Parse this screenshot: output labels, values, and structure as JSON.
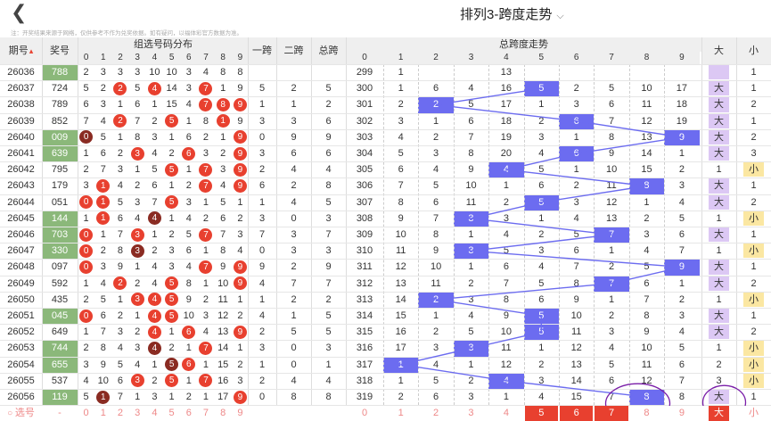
{
  "header": {
    "back_icon": "chevron-left-icon",
    "title": "排列3-跨度走势",
    "title_dropdown_icon": "chevron-down-icon",
    "note": "注：开奖结果来源于网络，仅供参考不作为兑奖依据。如有疑问，以福体彩官方数据为准。"
  },
  "columns": {
    "issue": "期号",
    "sort_icon": "sort-icon",
    "win": "奖号",
    "dist": "组选号码分布",
    "span1": "一跨",
    "span2": "二跨",
    "total_span": "总跨",
    "trend": "总跨度走势",
    "big": "大",
    "small": "小"
  },
  "digits": [
    "0",
    "1",
    "2",
    "3",
    "4",
    "5",
    "6",
    "7",
    "8",
    "9"
  ],
  "rows": [
    {
      "issue": "26036",
      "win": "788",
      "dist": [
        "2",
        "3",
        "3",
        "3",
        "10",
        "10",
        "3",
        "4",
        "8",
        "8"
      ],
      "span1": "",
      "span2": "",
      "total": "",
      "t": [
        "299",
        "1",
        "",
        "",
        "13",
        "",
        "",
        "",
        "",
        "",
        ""
      ],
      "sel": "big",
      "bv": "",
      "sv": "1"
    },
    {
      "issue": "26037",
      "win": "724",
      "dist": [
        "5",
        "2",
        "2",
        "5",
        "4",
        "14",
        "3",
        "7",
        "1",
        "9"
      ],
      "span1": "5",
      "span2": "2",
      "total": "5",
      "t": [
        "300",
        "1",
        "6",
        "4",
        "16",
        "5",
        "2",
        "5",
        "10",
        "17"
      ],
      "sel": "big",
      "bv": "大",
      "sv": "1"
    },
    {
      "issue": "26038",
      "win": "789",
      "dist": [
        "6",
        "3",
        "1",
        "6",
        "1",
        "15",
        "4",
        "7",
        "8",
        "9"
      ],
      "span1": "1",
      "span2": "1",
      "total": "2",
      "t": [
        "301",
        "2",
        "2",
        "5",
        "17",
        "1",
        "3",
        "6",
        "11",
        "18"
      ],
      "sel": "big",
      "bv": "大",
      "sv": "2"
    },
    {
      "issue": "26039",
      "win": "852",
      "dist": [
        "7",
        "4",
        "2",
        "7",
        "2",
        "5",
        "1",
        "8",
        "1",
        "9"
      ],
      "span1": "3",
      "span2": "3",
      "total": "6",
      "t": [
        "302",
        "3",
        "1",
        "6",
        "18",
        "2",
        "6",
        "7",
        "12",
        "19"
      ],
      "sel": "big",
      "bv": "大",
      "sv": "1"
    },
    {
      "issue": "26040",
      "win": "009",
      "dist": [
        "0",
        "5",
        "1",
        "8",
        "3",
        "1",
        "6",
        "2",
        "1",
        "9"
      ],
      "span1": "0",
      "span2": "9",
      "total": "9",
      "t": [
        "303",
        "4",
        "2",
        "7",
        "19",
        "3",
        "1",
        "8",
        "13",
        "9"
      ],
      "sel": "big",
      "bv": "大",
      "sv": "2"
    },
    {
      "issue": "26041",
      "win": "639",
      "dist": [
        "1",
        "6",
        "2",
        "3",
        "4",
        "2",
        "6",
        "3",
        "2",
        "9"
      ],
      "span1": "3",
      "span2": "6",
      "total": "6",
      "t": [
        "304",
        "5",
        "3",
        "8",
        "20",
        "4",
        "6",
        "9",
        "14",
        "1"
      ],
      "sel": "big",
      "bv": "大",
      "sv": "3"
    },
    {
      "issue": "26042",
      "win": "795",
      "dist": [
        "2",
        "7",
        "3",
        "1",
        "5",
        "5",
        "1",
        "7",
        "3",
        "9"
      ],
      "span1": "2",
      "span2": "4",
      "total": "4",
      "t": [
        "305",
        "6",
        "4",
        "9",
        "4",
        "5",
        "1",
        "10",
        "15",
        "2"
      ],
      "sel": "small",
      "bv": "1",
      "sv": "小"
    },
    {
      "issue": "26043",
      "win": "179",
      "dist": [
        "3",
        "1",
        "4",
        "2",
        "6",
        "1",
        "2",
        "7",
        "4",
        "9"
      ],
      "span1": "6",
      "span2": "2",
      "total": "8",
      "t": [
        "306",
        "7",
        "5",
        "10",
        "1",
        "6",
        "2",
        "11",
        "8",
        "3"
      ],
      "sel": "big",
      "bv": "大",
      "sv": "1"
    },
    {
      "issue": "26044",
      "win": "051",
      "dist": [
        "0",
        "1",
        "5",
        "3",
        "7",
        "5",
        "3",
        "1",
        "5",
        "1"
      ],
      "span1": "1",
      "span2": "4",
      "total": "5",
      "t": [
        "307",
        "8",
        "6",
        "11",
        "2",
        "5",
        "3",
        "12",
        "1",
        "4"
      ],
      "sel": "big",
      "bv": "大",
      "sv": "2"
    },
    {
      "issue": "26045",
      "win": "144",
      "dist": [
        "1",
        "1",
        "6",
        "4",
        "4",
        "1",
        "4",
        "2",
        "6",
        "2"
      ],
      "span1": "3",
      "span2": "0",
      "total": "3",
      "t": [
        "308",
        "9",
        "7",
        "3",
        "3",
        "1",
        "4",
        "13",
        "2",
        "5"
      ],
      "sel": "small",
      "bv": "1",
      "sv": "小"
    },
    {
      "issue": "26046",
      "win": "703",
      "dist": [
        "0",
        "1",
        "7",
        "3",
        "1",
        "2",
        "5",
        "7",
        "7",
        "3"
      ],
      "span1": "7",
      "span2": "3",
      "total": "7",
      "t": [
        "309",
        "10",
        "8",
        "1",
        "4",
        "2",
        "5",
        "7",
        "3",
        "6"
      ],
      "sel": "big",
      "bv": "大",
      "sv": "1"
    },
    {
      "issue": "26047",
      "win": "330",
      "dist": [
        "0",
        "2",
        "8",
        "3",
        "2",
        "3",
        "6",
        "1",
        "8",
        "4"
      ],
      "span1": "0",
      "span2": "3",
      "total": "3",
      "t": [
        "310",
        "11",
        "9",
        "3",
        "5",
        "3",
        "6",
        "1",
        "4",
        "7"
      ],
      "sel": "small",
      "bv": "1",
      "sv": "小"
    },
    {
      "issue": "26048",
      "win": "097",
      "dist": [
        "0",
        "3",
        "9",
        "1",
        "4",
        "3",
        "4",
        "7",
        "9",
        "9"
      ],
      "span1": "9",
      "span2": "2",
      "total": "9",
      "t": [
        "311",
        "12",
        "10",
        "1",
        "6",
        "4",
        "7",
        "2",
        "5",
        "9"
      ],
      "sel": "big",
      "bv": "大",
      "sv": "1"
    },
    {
      "issue": "26049",
      "win": "592",
      "dist": [
        "1",
        "4",
        "2",
        "2",
        "4",
        "5",
        "8",
        "1",
        "10",
        "9"
      ],
      "span1": "4",
      "span2": "7",
      "total": "7",
      "t": [
        "312",
        "13",
        "11",
        "2",
        "7",
        "5",
        "8",
        "7",
        "6",
        "1"
      ],
      "sel": "big",
      "bv": "大",
      "sv": "2"
    },
    {
      "issue": "26050",
      "win": "435",
      "dist": [
        "2",
        "5",
        "1",
        "3",
        "4",
        "5",
        "9",
        "2",
        "11",
        "1"
      ],
      "span1": "1",
      "span2": "2",
      "total": "2",
      "t": [
        "313",
        "14",
        "2",
        "3",
        "8",
        "6",
        "9",
        "1",
        "7",
        "2"
      ],
      "sel": "small",
      "bv": "1",
      "sv": "小"
    },
    {
      "issue": "26051",
      "win": "045",
      "dist": [
        "0",
        "6",
        "2",
        "1",
        "4",
        "5",
        "10",
        "3",
        "12",
        "2"
      ],
      "span1": "4",
      "span2": "1",
      "total": "5",
      "t": [
        "314",
        "15",
        "1",
        "4",
        "9",
        "5",
        "10",
        "2",
        "8",
        "3"
      ],
      "sel": "big",
      "bv": "大",
      "sv": "1"
    },
    {
      "issue": "26052",
      "win": "649",
      "dist": [
        "1",
        "7",
        "3",
        "2",
        "4",
        "1",
        "6",
        "4",
        "13",
        "9"
      ],
      "span1": "2",
      "span2": "5",
      "total": "5",
      "t": [
        "315",
        "16",
        "2",
        "5",
        "10",
        "5",
        "11",
        "3",
        "9",
        "4"
      ],
      "sel": "big",
      "bv": "大",
      "sv": "2"
    },
    {
      "issue": "26053",
      "win": "744",
      "dist": [
        "2",
        "8",
        "4",
        "3",
        "4",
        "2",
        "1",
        "7",
        "14",
        "1"
      ],
      "span1": "3",
      "span2": "0",
      "total": "3",
      "t": [
        "316",
        "17",
        "3",
        "3",
        "11",
        "1",
        "12",
        "4",
        "10",
        "5"
      ],
      "sel": "small",
      "bv": "1",
      "sv": "小"
    },
    {
      "issue": "26054",
      "win": "655",
      "dist": [
        "3",
        "9",
        "5",
        "4",
        "1",
        "5",
        "6",
        "1",
        "15",
        "2"
      ],
      "span1": "1",
      "span2": "0",
      "total": "1",
      "t": [
        "317",
        "1",
        "4",
        "1",
        "12",
        "2",
        "13",
        "5",
        "11",
        "6"
      ],
      "sel": "small",
      "bv": "2",
      "sv": "小"
    },
    {
      "issue": "26055",
      "win": "537",
      "dist": [
        "4",
        "10",
        "6",
        "3",
        "2",
        "5",
        "1",
        "7",
        "16",
        "3"
      ],
      "span1": "2",
      "span2": "4",
      "total": "4",
      "t": [
        "318",
        "1",
        "5",
        "2",
        "4",
        "3",
        "14",
        "6",
        "12",
        "7"
      ],
      "sel": "small",
      "bv": "3",
      "sv": "小"
    },
    {
      "issue": "26056",
      "win": "119",
      "dist": [
        "5",
        "1",
        "7",
        "1",
        "3",
        "1",
        "2",
        "1",
        "17",
        "9"
      ],
      "span1": "0",
      "span2": "8",
      "total": "8",
      "t": [
        "319",
        "2",
        "6",
        "3",
        "1",
        "4",
        "15",
        "7",
        "8",
        "8"
      ],
      "sel": "big",
      "bv": "大",
      "sv": "1"
    }
  ],
  "select_row": {
    "label": "选号",
    "radio_icon": "radio-circle-icon",
    "dist": [
      "0",
      "1",
      "2",
      "3",
      "4",
      "5",
      "6",
      "7",
      "8",
      "9"
    ],
    "trend": [
      "0",
      "1",
      "2",
      "3",
      "4",
      "5",
      "6",
      "7",
      "8",
      "9"
    ],
    "big": "大",
    "small": "小"
  }
}
